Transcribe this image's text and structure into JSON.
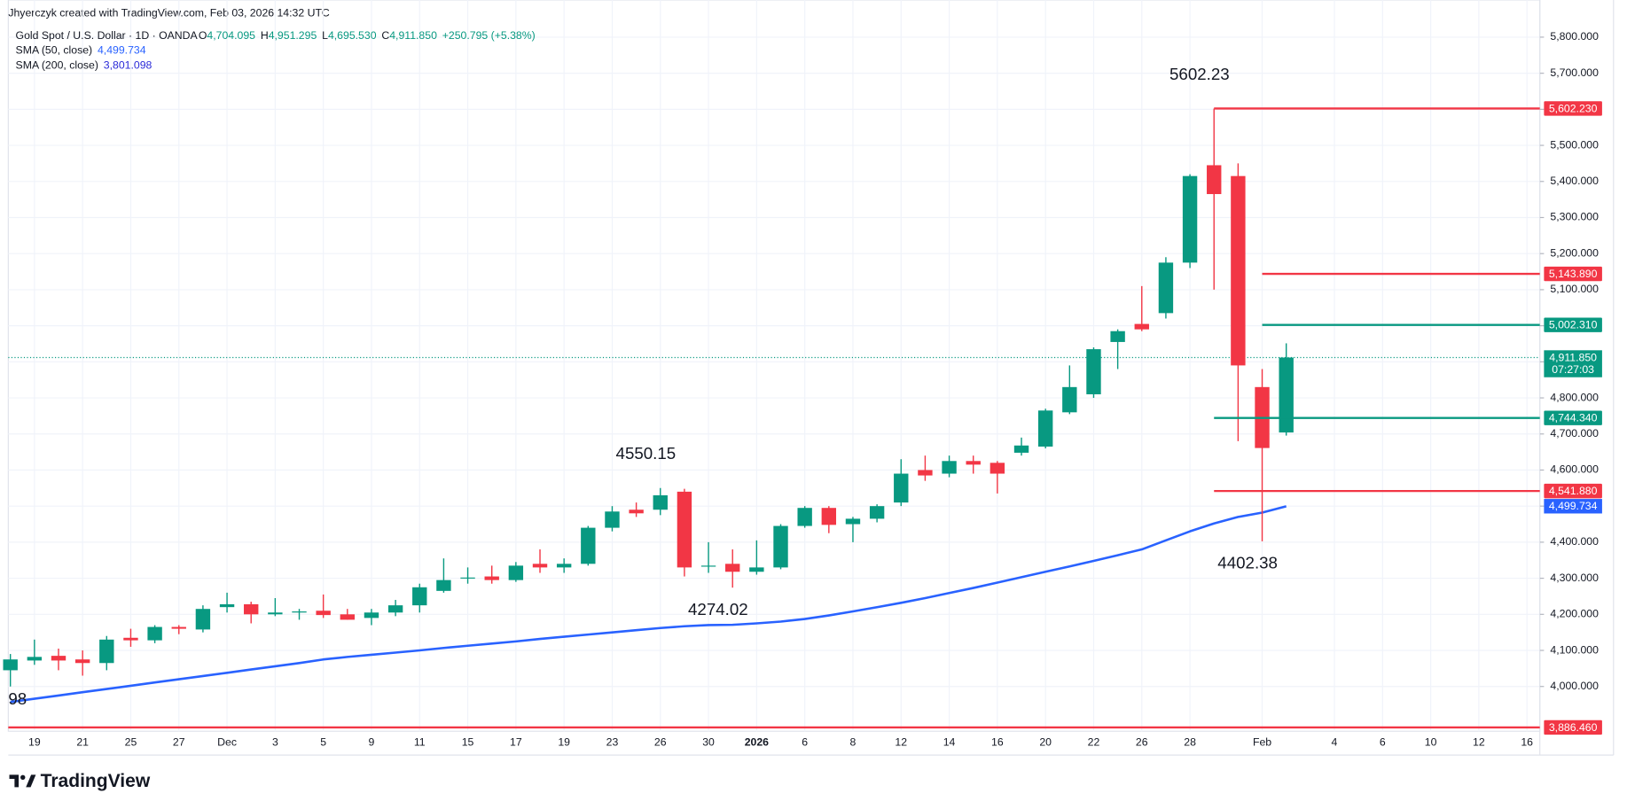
{
  "header": {
    "credit": "Jhyerczyk created with TradingView.com, Feb 03, 2026 14:32 UTC",
    "logo": "TradingView"
  },
  "chart_data": {
    "type": "candlestick",
    "title": "Gold Spot / U.S. Dollar · 1D · OANDA",
    "legend_fields": [
      {
        "key": "O",
        "label": "4,704.095"
      },
      {
        "key": "H",
        "label": "4,951.295"
      },
      {
        "key": "L",
        "label": "4,695.530"
      },
      {
        "key": "C",
        "label": "4,911.850"
      }
    ],
    "change_label": "+250.795 (+5.38%)",
    "countdown": "07:27:03",
    "close_label": "4,911.850",
    "edge_label": "98",
    "up_color": "#089981",
    "down_color": "#f23645",
    "categories": [
      null,
      "19",
      null,
      "21",
      null,
      "25",
      null,
      "27",
      null,
      "Dec",
      null,
      "3",
      null,
      "5",
      null,
      "9",
      null,
      "11",
      null,
      "15",
      null,
      "17",
      null,
      "19",
      null,
      "23",
      null,
      "26",
      null,
      "30",
      null,
      "2026",
      null,
      "6",
      null,
      "8",
      null,
      "12",
      null,
      "14",
      null,
      "16",
      null,
      "20",
      null,
      "22",
      null,
      "26",
      null,
      "28",
      null,
      null,
      "Feb",
      null
    ],
    "future_ticks": [
      "4",
      "6",
      "10",
      "12",
      "16"
    ],
    "open": [
      4045,
      4072,
      4085,
      4075,
      4065,
      4135,
      4128,
      4165,
      4158,
      4220,
      4228,
      4200,
      4205,
      4210,
      4200,
      4190,
      4205,
      4225,
      4265,
      4300,
      4305,
      4295,
      4340,
      4330,
      4340,
      4440,
      4490,
      4490,
      4540,
      4335,
      4340,
      4318,
      4330,
      4445,
      4495,
      4450,
      4465,
      4510,
      4600,
      4590,
      4625,
      4620,
      4648,
      4665,
      4760,
      4810,
      4955,
      5005,
      5035,
      5175,
      5445,
      5415,
      4830,
      4704.095
    ],
    "high": [
      4090,
      4130,
      4105,
      4100,
      4140,
      4160,
      4170,
      4170,
      4225,
      4260,
      4235,
      4245,
      4215,
      4255,
      4215,
      4215,
      4240,
      4285,
      4355,
      4330,
      4335,
      4345,
      4380,
      4355,
      4445,
      4500,
      4510,
      4550.15,
      4548,
      4400,
      4380,
      4405,
      4450,
      4500,
      4500,
      4470,
      4505,
      4630,
      4640,
      4640,
      4640,
      4625,
      4690,
      4770,
      4890,
      4940,
      4990,
      5110,
      5190,
      5420,
      5602.23,
      5450,
      4880,
      4951.295
    ],
    "low": [
      4000,
      4060,
      4045,
      4030,
      4045,
      4110,
      4120,
      4145,
      4150,
      4205,
      4175,
      4195,
      4185,
      4190,
      4185,
      4170,
      4195,
      4205,
      4260,
      4285,
      4285,
      4290,
      4315,
      4315,
      4335,
      4430,
      4470,
      4475,
      4305,
      4315,
      4274.02,
      4310,
      4325,
      4440,
      4425,
      4400,
      4455,
      4500,
      4570,
      4580,
      4590,
      4535,
      4640,
      4660,
      4755,
      4800,
      4880,
      4985,
      5020,
      5160,
      5100,
      4680,
      4402.38,
      4695.53
    ],
    "close": [
      4075,
      4082,
      4072,
      4065,
      4130,
      4128,
      4165,
      4160,
      4215,
      4228,
      4200,
      4205,
      4208,
      4198,
      4185,
      4205,
      4225,
      4275,
      4295,
      4302,
      4295,
      4335,
      4330,
      4340,
      4440,
      4485,
      4480,
      4530,
      4330,
      4335,
      4318,
      4330,
      4445,
      4495,
      4448,
      4465,
      4500,
      4590,
      4585,
      4625,
      4615,
      4590,
      4668,
      4765,
      4830,
      4935,
      4985,
      4990,
      5175,
      5415,
      5365,
      4890,
      4661.055,
      4911.85
    ],
    "indicators": [
      {
        "name": "SMA (50, close)",
        "color": "#2962ff",
        "value_label": "4,499.734",
        "values": [
          3957,
          3966,
          3975,
          3984,
          3993,
          4002,
          4011,
          4020,
          4029,
          4038,
          4047,
          4056,
          4065,
          4075,
          4082,
          4088,
          4094,
          4100,
          4107,
          4113,
          4119,
          4125,
          4132,
          4138,
          4144,
          4150,
          4156,
          4162,
          4167,
          4170,
          4171,
          4175,
          4180,
          4187,
          4197,
          4208,
          4220,
          4232,
          4245,
          4259,
          4273,
          4288,
          4303,
          4318,
          4333,
          4348,
          4364,
          4380,
          4405,
          4430,
          4452,
          4470,
          4482,
          4499.734
        ]
      },
      {
        "name": "SMA (200, close)",
        "color": "#2a2ad8",
        "value_label": "3,801.098"
      }
    ],
    "levels": [
      {
        "value": 5602.23,
        "label": "5,602.230",
        "color": "#f23645"
      },
      {
        "value": 5143.89,
        "label": "5,143.890",
        "color": "#f23645"
      },
      {
        "value": 5002.31,
        "label": "5,002.310",
        "color": "#089981"
      },
      {
        "value": 4744.34,
        "label": "4,744.340",
        "color": "#089981"
      },
      {
        "value": 4541.88,
        "label": "4,541.880",
        "color": "#f23645"
      },
      {
        "value": 3886.46,
        "label": "3,886.460",
        "color": "#f23645"
      }
    ],
    "annotations": [
      {
        "label": "5602.23",
        "value": 5602.23
      },
      {
        "label": "4550.15",
        "value": 4550.15
      },
      {
        "label": "4274.02",
        "value": 4274.02
      },
      {
        "label": "4402.38",
        "value": 4402.38
      }
    ],
    "ylim": [
      3876,
      5903
    ],
    "yticks": [
      {
        "value": 4000,
        "label": "4,000.000"
      },
      {
        "value": 4100,
        "label": "4,100.000"
      },
      {
        "value": 4200,
        "label": "4,200.000"
      },
      {
        "value": 4300,
        "label": "4,300.000"
      },
      {
        "value": 4400,
        "label": "4,400.000"
      },
      {
        "value": 4500,
        "label": "4,500.000"
      },
      {
        "value": 4600,
        "label": "4,600.000"
      },
      {
        "value": 4700,
        "label": "4,700.000"
      },
      {
        "value": 4800,
        "label": "4,800.000"
      },
      {
        "value": 4900,
        "label": "4,900.000"
      },
      {
        "value": 5000,
        "label": "5,000.000"
      },
      {
        "value": 5100,
        "label": "5,100.000"
      },
      {
        "value": 5200,
        "label": "5,200.000"
      },
      {
        "value": 5300,
        "label": "5,300.000"
      },
      {
        "value": 5400,
        "label": "5,400.000"
      },
      {
        "value": 5500,
        "label": "5,500.000"
      },
      {
        "value": 5600,
        "label": "5,600.000"
      },
      {
        "value": 5700,
        "label": "5,700.000"
      },
      {
        "value": 5800,
        "label": "5,800.000"
      }
    ],
    "grid": true
  }
}
